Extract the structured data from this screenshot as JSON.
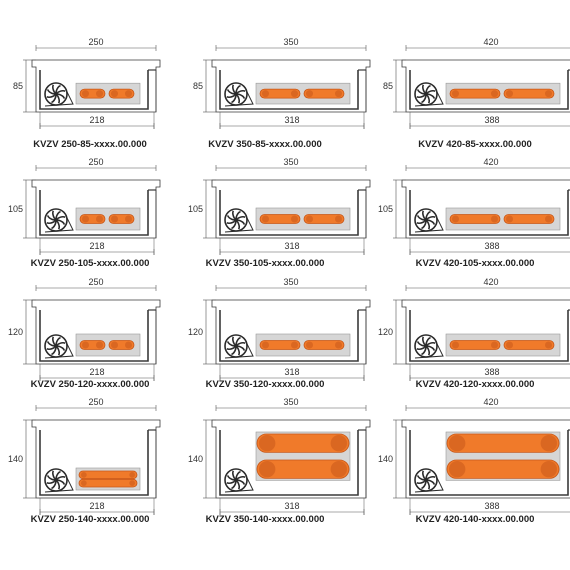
{
  "colors": {
    "outline": "#3a3a3a",
    "dimension": "#555555",
    "plate": "#d6d6d6",
    "pipe": "#f07a2a",
    "pipe_dark": "#c8581a",
    "fan": "#2a2a2a",
    "label": "#222222"
  },
  "icons": [
    "fan-icon",
    "water-pipe-icon",
    "heat-exchanger-icon",
    "dimension-arrow-icon"
  ],
  "widths": [
    {
      "width": "250",
      "inner": "218"
    },
    {
      "width": "350",
      "inner": "318"
    },
    {
      "width": "420",
      "inner": "388"
    }
  ],
  "heights": [
    "85",
    "105",
    "120",
    "140"
  ],
  "models": [
    [
      "KVZV 250-85-xxxx.00.000",
      "KVZV 350-85-xxxx.00.000",
      "KVZV 420-85-xxxx.00.000"
    ],
    [
      "KVZV 250-105-xxxx.00.000",
      "KVZV 350-105-xxxx.00.000",
      "KVZV 420-105-xxxx.00.000"
    ],
    [
      "KVZV 250-120-xxxx.00.000",
      "KVZV 350-120-xxxx.00.000",
      "KVZV 420-120-xxxx.00.000"
    ],
    [
      "KVZV 250-140-xxxx.00.000",
      "KVZV 350-140-xxxx.00.000",
      "KVZV 420-140-xxxx.00.000"
    ]
  ]
}
